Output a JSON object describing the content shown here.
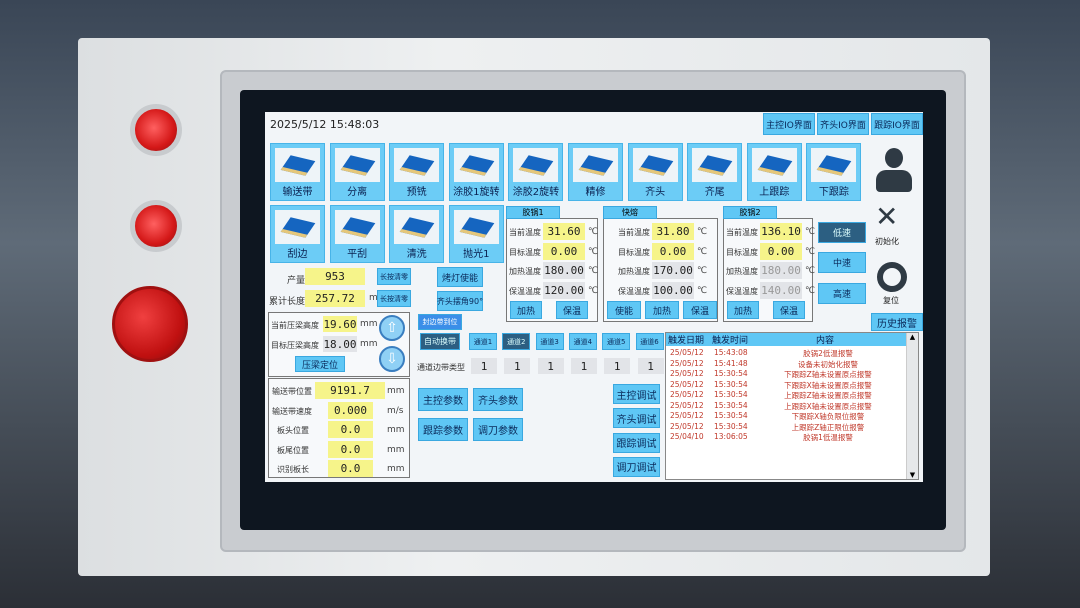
{
  "header": {
    "datetime": "2025/5/12 15:48:03",
    "io_buttons": [
      "主控IO界面",
      "齐头IO界面",
      "跟踪IO界面"
    ]
  },
  "tiles_row1": [
    "输送带",
    "分离",
    "预铣",
    "涂胶1旋转",
    "涂胶2旋转",
    "精修",
    "齐头",
    "齐尾",
    "上跟踪",
    "下跟踪"
  ],
  "tiles_row2": [
    "刮边",
    "平刮",
    "清洗",
    "抛光1"
  ],
  "side": {
    "user_icon": "user-icon",
    "init_label": "初始化",
    "reset_label": "复位",
    "history_alarm": "历史报警"
  },
  "speed": {
    "low": "低速",
    "mid": "中速",
    "high": "高速"
  },
  "pots": [
    {
      "title": "胶锅1",
      "rows": [
        [
          "当前温度",
          "31.60"
        ],
        [
          "目标温度",
          "0.00"
        ],
        [
          "加热温度",
          "180.00"
        ],
        [
          "保温温度",
          "120.00"
        ]
      ],
      "buttons": [
        "加热",
        "保温"
      ]
    },
    {
      "title": "快熔",
      "rows": [
        [
          "当前温度",
          "31.80"
        ],
        [
          "目标温度",
          "0.00"
        ],
        [
          "加热温度",
          "170.00"
        ],
        [
          "保温温度",
          "100.00"
        ]
      ],
      "buttons": [
        "使能",
        "加热",
        "保温"
      ]
    },
    {
      "title": "胶锅2",
      "rows": [
        [
          "当前温度",
          "136.10"
        ],
        [
          "目标温度",
          "0.00"
        ],
        [
          "加热温度",
          "180.00"
        ],
        [
          "保温温度",
          "140.00"
        ]
      ],
      "buttons": [
        "加热",
        "保温"
      ]
    }
  ],
  "temp_unit": "℃",
  "counters": {
    "output_label": "产量",
    "output_value": "953",
    "length_label": "累计长度",
    "length_value": "257.72",
    "length_unit": "m",
    "reset_label": "长按清零"
  },
  "toggles": {
    "lamp": "烤灯使能",
    "angle": "齐头摆角90°"
  },
  "pressure": {
    "current_label": "当前压梁高度",
    "current_value": "19.60",
    "target_label": "目标压梁高度",
    "target_value": "18.00",
    "unit": "mm",
    "locate": "压梁定位"
  },
  "conveyor": [
    {
      "label": "输送带位置",
      "value": "9191.7",
      "unit": "mm"
    },
    {
      "label": "输送带速度",
      "value": "0.000",
      "unit": "m/s"
    },
    {
      "label": "板头位置",
      "value": "0.0",
      "unit": "mm"
    },
    {
      "label": "板尾位置",
      "value": "0.0",
      "unit": "mm"
    },
    {
      "label": "识别板长",
      "value": "0.0",
      "unit": "mm"
    }
  ],
  "channels": {
    "edge_ready": "封边带到位",
    "auto_change": "自动换带",
    "items": [
      "通道1",
      "通道2",
      "通道3",
      "通道4",
      "通道5",
      "通道6"
    ],
    "active": "通道2",
    "type_label": "通道边带类型",
    "types": [
      "1",
      "1",
      "1",
      "1",
      "1",
      "1"
    ]
  },
  "params": [
    "主控参数",
    "齐头参数",
    "跟踪参数",
    "调刀参数"
  ],
  "debug": [
    "主控调试",
    "齐头调试",
    "跟踪调试",
    "调刀调试"
  ],
  "alarm": {
    "headers": [
      "触发日期",
      "触发时间",
      "内容"
    ],
    "rows": [
      [
        "25/05/12",
        "15:43:08",
        "胶锅2低温报警"
      ],
      [
        "25/05/12",
        "15:41:48",
        "设备未初始化报警"
      ],
      [
        "25/05/12",
        "15:30:54",
        "下跟踪Z轴未设置原点报警"
      ],
      [
        "25/05/12",
        "15:30:54",
        "下跟踪X轴未设置原点报警"
      ],
      [
        "25/05/12",
        "15:30:54",
        "上跟踪Z轴未设置原点报警"
      ],
      [
        "25/05/12",
        "15:30:54",
        "上跟踪X轴未设置原点报警"
      ],
      [
        "25/05/12",
        "15:30:54",
        "下跟踪X轴负限位报警"
      ],
      [
        "25/05/12",
        "15:30:54",
        "上跟踪Z轴正限位报警"
      ],
      [
        "25/04/10",
        "13:06:05",
        "胶锅1低温报警"
      ]
    ]
  },
  "colors": {
    "accent": "#5fc7f5",
    "value_bg": "#f6f48a",
    "alarm_text": "#c0392b",
    "active_dark": "#2c5f82"
  }
}
